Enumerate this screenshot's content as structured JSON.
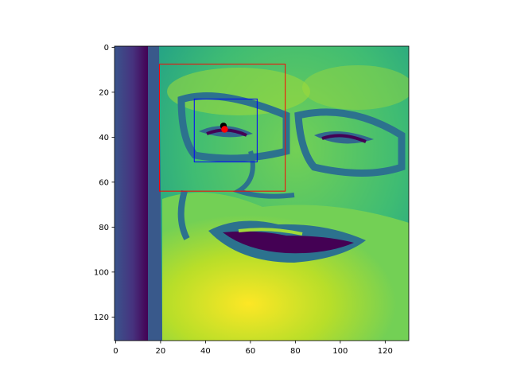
{
  "chart_data": {
    "type": "heatmap",
    "image_colormap": "viridis",
    "image_description_name": "grayscale face image",
    "grid": false,
    "xlim": [
      -0.5,
      130.5
    ],
    "ylim": [
      130.5,
      -0.5
    ],
    "x_ticks": [
      0,
      20,
      40,
      60,
      80,
      100,
      120
    ],
    "y_ticks": [
      0,
      20,
      40,
      60,
      80,
      100,
      120
    ],
    "x_tick_labels": [
      "0",
      "20",
      "40",
      "60",
      "80",
      "100",
      "120"
    ],
    "y_tick_labels": [
      "0",
      "20",
      "40",
      "60",
      "80",
      "100",
      "120"
    ],
    "rectangles": [
      {
        "name": "outer-box",
        "color": "#ff0000",
        "x0": 19.5,
        "y0": 7.5,
        "x1": 75.5,
        "y1": 64.0
      },
      {
        "name": "inner-box",
        "color": "#0000ff",
        "x0": 35.0,
        "y0": 23.0,
        "x1": 63.0,
        "y1": 51.0
      }
    ],
    "points": [
      {
        "name": "black-point",
        "color": "#000000",
        "x": 48.0,
        "y": 35.0
      },
      {
        "name": "red-point",
        "color": "#ff0000",
        "x": 48.5,
        "y": 36.5
      }
    ]
  }
}
